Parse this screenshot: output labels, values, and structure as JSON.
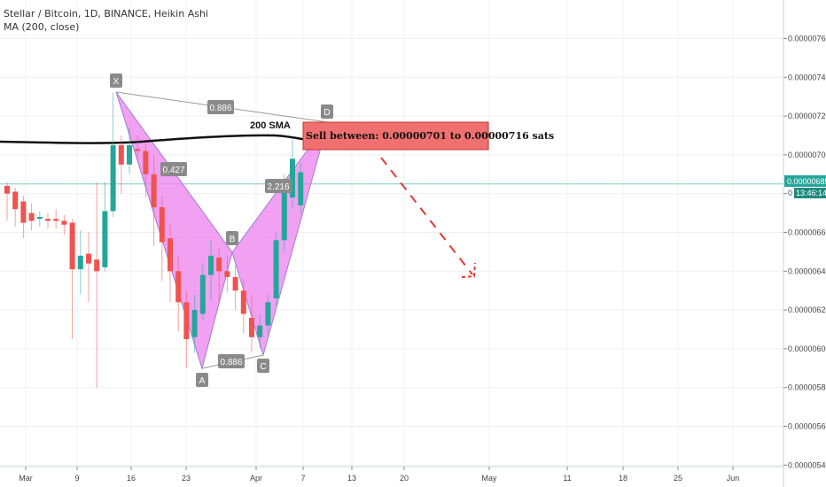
{
  "header": {
    "symbol_line": "Stellar / Bitcoin, 1D, BINANCE, Heikin Ashi",
    "indicator_line": "MA (200, close)"
  },
  "chart_data": {
    "type": "candlestick",
    "y_ticks": [
      "0.00000760",
      "0.00000740",
      "0.00000720",
      "0.00000700",
      "0.00000680",
      "0.00000660",
      "0.00000640",
      "0.00000620",
      "0.00000600",
      "0.00000580",
      "0.00000560",
      "0.00000540"
    ],
    "x_ticks": [
      "Mar",
      "9",
      "16",
      "23",
      "Apr",
      "7",
      "13",
      "20",
      "May",
      "11",
      "18",
      "25",
      "Jun"
    ],
    "ylim": [
      5.38e-06,
      7.8e-06
    ],
    "last_price": "0.00000685",
    "countdown": "13:46:14",
    "sma_label": "200 SMA",
    "pattern_points": [
      "X",
      "A",
      "B",
      "C",
      "D"
    ],
    "ratios": [
      "0.886",
      "0.427",
      "0.886",
      "2.216"
    ],
    "annotation": "Sell between: 0.00000701 to 0.00000716 sats",
    "colors": {
      "up": "#26a69a",
      "down": "#ef5350",
      "pattern": "#ee82ee",
      "sell_box": "#f07070",
      "arrow": "#e53935",
      "price_line": "#26a69a"
    },
    "candles": [
      {
        "d": 0,
        "o": 684,
        "c": 680,
        "h": 686,
        "l": 666
      },
      {
        "d": 1,
        "o": 681,
        "c": 672,
        "h": 683,
        "l": 663
      },
      {
        "d": 2,
        "o": 676,
        "c": 665,
        "h": 679,
        "l": 657
      },
      {
        "d": 3,
        "o": 670,
        "c": 666,
        "h": 675,
        "l": 661
      },
      {
        "d": 4,
        "o": 667,
        "c": 668,
        "h": 671,
        "l": 663
      },
      {
        "d": 5,
        "o": 667,
        "c": 666,
        "h": 670,
        "l": 662
      },
      {
        "d": 6,
        "o": 667,
        "c": 666,
        "h": 672,
        "l": 662
      },
      {
        "d": 7,
        "o": 666,
        "c": 664,
        "h": 669,
        "l": 659
      },
      {
        "d": 8,
        "o": 665,
        "c": 641,
        "h": 667,
        "l": 605
      },
      {
        "d": 9,
        "o": 641,
        "c": 648,
        "h": 661,
        "l": 628
      },
      {
        "d": 10,
        "o": 649,
        "c": 644,
        "h": 660,
        "l": 624
      },
      {
        "d": 11,
        "o": 646,
        "c": 640,
        "h": 686,
        "l": 580
      },
      {
        "d": 12,
        "o": 642,
        "c": 671,
        "h": 686,
        "l": 640
      },
      {
        "d": 13,
        "o": 671,
        "c": 705,
        "h": 732,
        "l": 668
      },
      {
        "d": 14,
        "o": 705,
        "c": 695,
        "h": 710,
        "l": 680
      },
      {
        "d": 15,
        "o": 695,
        "c": 705,
        "h": 714,
        "l": 690
      },
      {
        "d": 16,
        "o": 703,
        "c": 702,
        "h": 710,
        "l": 697
      },
      {
        "d": 17,
        "o": 702,
        "c": 690,
        "h": 706,
        "l": 678
      },
      {
        "d": 18,
        "o": 690,
        "c": 673,
        "h": 700,
        "l": 653
      },
      {
        "d": 19,
        "o": 673,
        "c": 655,
        "h": 679,
        "l": 635
      },
      {
        "d": 20,
        "o": 657,
        "c": 640,
        "h": 665,
        "l": 624
      },
      {
        "d": 21,
        "o": 640,
        "c": 624,
        "h": 648,
        "l": 609
      },
      {
        "d": 22,
        "o": 624,
        "c": 605,
        "h": 630,
        "l": 590
      },
      {
        "d": 23,
        "o": 606,
        "c": 620,
        "h": 628,
        "l": 598
      },
      {
        "d": 24,
        "o": 618,
        "c": 638,
        "h": 644,
        "l": 615
      },
      {
        "d": 25,
        "o": 638,
        "c": 648,
        "h": 656,
        "l": 625
      },
      {
        "d": 26,
        "o": 647,
        "c": 640,
        "h": 652,
        "l": 624
      },
      {
        "d": 27,
        "o": 640,
        "c": 637,
        "h": 648,
        "l": 629
      },
      {
        "d": 28,
        "o": 637,
        "c": 630,
        "h": 643,
        "l": 620
      },
      {
        "d": 29,
        "o": 630,
        "c": 618,
        "h": 636,
        "l": 608
      },
      {
        "d": 30,
        "o": 616,
        "c": 606,
        "h": 628,
        "l": 598
      },
      {
        "d": 31,
        "o": 606,
        "c": 612,
        "h": 618,
        "l": 600
      },
      {
        "d": 32,
        "o": 612,
        "c": 624,
        "h": 628,
        "l": 607
      },
      {
        "d": 33,
        "o": 626,
        "c": 656,
        "h": 660,
        "l": 622
      },
      {
        "d": 34,
        "o": 656,
        "c": 681,
        "h": 690,
        "l": 650
      },
      {
        "d": 35,
        "o": 678,
        "c": 698,
        "h": 708,
        "l": 672
      },
      {
        "d": 36,
        "o": 674,
        "c": 691,
        "h": 696,
        "l": 670
      }
    ]
  }
}
